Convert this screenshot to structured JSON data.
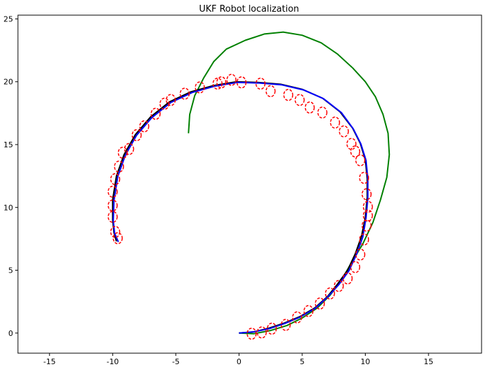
{
  "chart_data": {
    "type": "line",
    "title": "UKF Robot localization",
    "xlabel": "",
    "ylabel": "",
    "xlim": [
      -17.5,
      19.2
    ],
    "ylim": [
      -1.6,
      25.3
    ],
    "xticks": [
      -15,
      -10,
      -5,
      0,
      5,
      10,
      15
    ],
    "yticks": [
      0,
      5,
      10,
      15,
      20,
      25
    ],
    "grid": false,
    "colors": {
      "true_path": "#000000",
      "odometry": "#008000",
      "ukf_estimate": "#0000ff",
      "landmark_ellipse": "#ff0000"
    },
    "series": [
      {
        "role": "true_path",
        "x": [
          0,
          1.2,
          2.4,
          3.6,
          4.8,
          6.0,
          7.0,
          7.8,
          8.6,
          9.2,
          9.7,
          10.0,
          10.15,
          10.15,
          10.0,
          9.6,
          9.0,
          8.0,
          6.6,
          5.0,
          3.3,
          1.5,
          -0.2,
          -2.0,
          -3.8,
          -5.5,
          -7.0,
          -8.2,
          -9.1,
          -9.7,
          -10.0,
          -10.0,
          -9.9,
          -9.7
        ],
        "y": [
          0,
          0.1,
          0.4,
          0.8,
          1.3,
          2.0,
          2.9,
          3.9,
          5.0,
          6.3,
          7.7,
          9.2,
          10.8,
          12.3,
          13.8,
          15.1,
          16.3,
          17.6,
          18.7,
          19.4,
          19.8,
          19.95,
          20.0,
          19.7,
          19.2,
          18.4,
          17.2,
          15.8,
          14.2,
          12.5,
          10.6,
          9.0,
          8.0,
          7.3
        ]
      },
      {
        "role": "odometry",
        "x": [
          0,
          1.2,
          2.5,
          3.8,
          5.0,
          6.2,
          7.2,
          8.1,
          8.9,
          9.8,
          10.6,
          11.2,
          11.7,
          11.9,
          11.8,
          11.4,
          10.8,
          10.0,
          9.0,
          7.8,
          6.5,
          5.0,
          3.5,
          2.0,
          0.5,
          -1.0,
          -2.0,
          -2.8,
          -3.5,
          -3.9,
          -4.0
        ],
        "y": [
          0,
          -0.05,
          0.2,
          0.6,
          1.2,
          2.0,
          3.0,
          4.2,
          5.6,
          7.1,
          8.8,
          10.6,
          12.4,
          14.2,
          15.9,
          17.4,
          18.8,
          20.0,
          21.1,
          22.2,
          23.1,
          23.7,
          23.95,
          23.8,
          23.3,
          22.6,
          21.6,
          20.3,
          18.9,
          17.4,
          15.9
        ]
      },
      {
        "role": "ukf_estimate",
        "x": [
          0,
          1.2,
          2.4,
          3.6,
          4.8,
          6.0,
          7.0,
          7.9,
          8.7,
          9.3,
          9.8,
          10.05,
          10.2,
          10.2,
          10.05,
          9.65,
          9.05,
          8.1,
          6.7,
          5.1,
          3.4,
          1.6,
          -0.1,
          -1.9,
          -3.7,
          -5.4,
          -6.9,
          -8.1,
          -9.0,
          -9.6,
          -9.9,
          -9.95,
          -9.85,
          -9.55
        ],
        "y": [
          0,
          0.1,
          0.35,
          0.75,
          1.25,
          1.95,
          2.85,
          3.85,
          4.95,
          6.25,
          7.65,
          9.15,
          10.75,
          12.25,
          13.75,
          15.05,
          16.25,
          17.55,
          18.65,
          19.35,
          19.75,
          19.9,
          19.95,
          19.65,
          19.15,
          18.35,
          17.15,
          15.75,
          14.15,
          12.45,
          10.55,
          8.95,
          7.95,
          7.25
        ]
      }
    ],
    "landmark_ellipses": {
      "x": [
        1.0,
        1.8,
        2.6,
        3.7,
        4.6,
        5.5,
        6.4,
        7.2,
        7.9,
        8.6,
        9.2,
        9.6,
        9.9,
        10.1,
        10.2,
        10.2,
        10.1,
        9.9,
        9.6,
        9.2,
        8.9,
        8.3,
        7.6,
        6.6,
        5.6,
        4.8,
        3.9,
        2.5,
        1.7,
        0.2,
        -0.6,
        -1.4,
        -1.7,
        -3.1,
        -4.3,
        -5.4,
        -5.9,
        -6.6,
        -7.5,
        -8.1,
        -8.7,
        -9.2,
        -9.5,
        -9.8,
        -10.0,
        -10.0,
        -10.0,
        -9.8,
        -9.6
      ],
      "y": [
        -0.05,
        0.05,
        0.35,
        0.65,
        1.25,
        1.75,
        2.35,
        3.15,
        3.75,
        4.35,
        5.25,
        6.25,
        7.45,
        8.55,
        9.35,
        10.05,
        11.05,
        12.35,
        13.75,
        14.45,
        15.05,
        16.05,
        16.75,
        17.55,
        17.95,
        18.55,
        18.95,
        19.25,
        19.85,
        19.95,
        20.15,
        19.95,
        19.85,
        19.55,
        19.05,
        18.55,
        18.25,
        17.45,
        16.45,
        15.75,
        14.65,
        14.35,
        13.25,
        12.25,
        11.25,
        10.15,
        9.25,
        8.05,
        7.55
      ]
    }
  }
}
